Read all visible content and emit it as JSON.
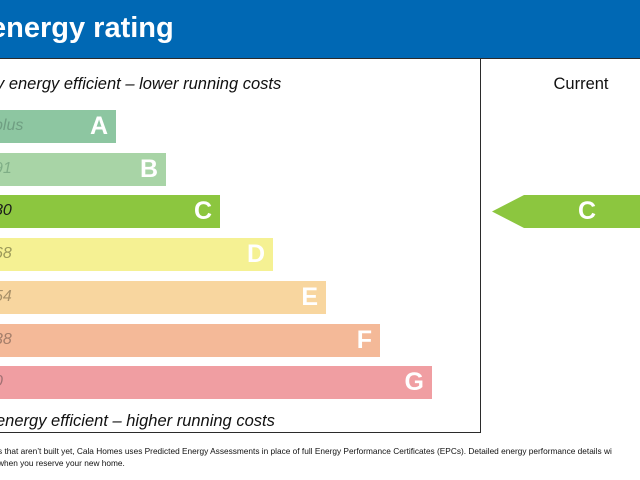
{
  "header": {
    "title": "energy rating"
  },
  "labels": {
    "top": "y energy efficient – lower running costs",
    "bottom": "energy efficient – higher running costs",
    "current_column": "Current"
  },
  "colors": {
    "header": "#0068b4",
    "A": "#8dc6a1",
    "B": "#a8d4a6",
    "C": "#8cc63f",
    "D": "#f5f193",
    "E": "#f8d69f",
    "F": "#f4b998",
    "G": "#f09ea2",
    "current": "#8cc63f"
  },
  "chart_data": {
    "type": "bar",
    "categories": [
      "A",
      "B",
      "C",
      "D",
      "E",
      "F",
      "G"
    ],
    "ranges": [
      "plus",
      "91",
      "80",
      "68",
      "54",
      "38",
      "0"
    ],
    "current_rating": "C"
  },
  "footnote": {
    "line1": "s that aren’t built yet, Cala Homes uses Predicted Energy Assessments in place of full Energy Performance Certificates (EPCs). Detailed energy performance details wi",
    "line2": "when you reserve your new home."
  }
}
